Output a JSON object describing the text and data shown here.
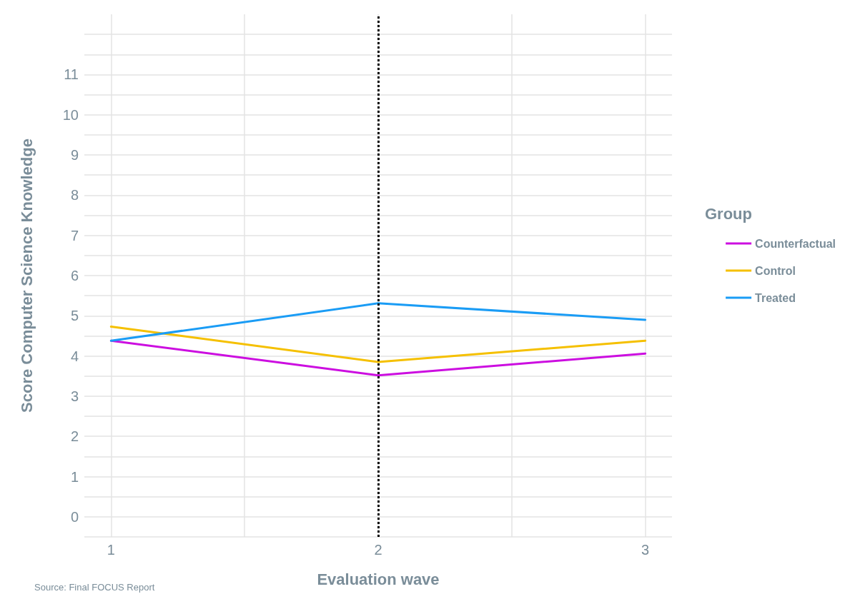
{
  "chart_data": {
    "type": "line",
    "xlabel": "Evaluation wave",
    "ylabel": "Score Computer Science Knowledge",
    "legend_title": "Group",
    "annotations": [
      "Source: Final FOCUS Report"
    ],
    "x": [
      1,
      2,
      3
    ],
    "xlim": [
      0.9,
      3.1
    ],
    "xticks": [
      1,
      {
        "value": 1.5,
        "label": null
      },
      2,
      {
        "value": 2.5,
        "label": null
      },
      3
    ],
    "ylim": [
      -0.5,
      12.5
    ],
    "yticks": [
      {
        "value": -0.5,
        "label": null
      },
      0,
      {
        "value": 0.5,
        "label": null
      },
      1,
      {
        "value": 1.5,
        "label": null
      },
      2,
      {
        "value": 2.5,
        "label": null
      },
      3,
      {
        "value": 3.5,
        "label": null
      },
      4,
      {
        "value": 4.5,
        "label": null
      },
      5,
      {
        "value": 5.5,
        "label": null
      },
      6,
      {
        "value": 6.5,
        "label": null
      },
      7,
      {
        "value": 7.5,
        "label": null
      },
      8,
      {
        "value": 8.5,
        "label": null
      },
      9,
      {
        "value": 9.5,
        "label": null
      },
      10,
      {
        "value": 10.5,
        "label": null
      },
      11,
      {
        "value": 11.5,
        "label": null
      },
      {
        "value": 12,
        "label": null
      }
    ],
    "series": [
      {
        "name": "Counterfactual",
        "color": "#cc0ee0",
        "values": [
          4.38,
          3.52,
          4.06
        ]
      },
      {
        "name": "Control",
        "color": "#f5c000",
        "values": [
          4.73,
          3.85,
          4.38
        ]
      },
      {
        "name": "Treated",
        "color": "#1a9cf5",
        "values": [
          4.38,
          5.31,
          4.9
        ]
      }
    ],
    "ref_lines": [
      {
        "axis": "x",
        "value": 2,
        "color": "#000000",
        "line_style": "dotted"
      }
    ],
    "grid": true,
    "legend": "right",
    "marker": "none",
    "line_style": "solid"
  }
}
